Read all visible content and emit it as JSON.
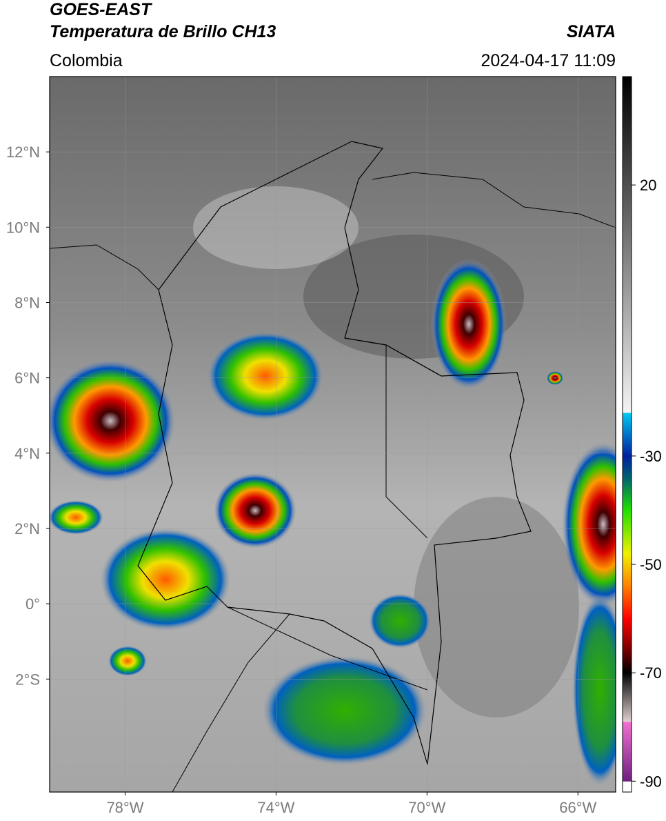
{
  "header": {
    "title": "GOES-EAST",
    "product": "Temperatura de Brillo CH13",
    "source": "SIATA",
    "region": "Colombia",
    "timestamp": "2024-04-17 11:09"
  },
  "map": {
    "lon_lim": [
      -80,
      -65
    ],
    "lat_lim": [
      -5,
      14
    ],
    "lon_ticks": [
      {
        "value": -78,
        "label": "78°W"
      },
      {
        "value": -74,
        "label": "74°W"
      },
      {
        "value": -70,
        "label": "70°W"
      },
      {
        "value": -66,
        "label": "66°W"
      }
    ],
    "lat_ticks": [
      {
        "value": 12,
        "label": "12°N"
      },
      {
        "value": 10,
        "label": "10°N"
      },
      {
        "value": 8,
        "label": "8°N"
      },
      {
        "value": 6,
        "label": "6°N"
      },
      {
        "value": 4,
        "label": "4°N"
      },
      {
        "value": 2,
        "label": "2°N"
      },
      {
        "value": 0,
        "label": "0°"
      },
      {
        "value": -2,
        "label": "2°S"
      }
    ]
  },
  "colorbar": {
    "lim": [
      -92,
      40
    ],
    "ticks": [
      20,
      -30,
      -50,
      -70,
      -90
    ],
    "stops": [
      {
        "value": 40,
        "color": "#000000"
      },
      {
        "value": -22,
        "color": "#f4f4f4"
      },
      {
        "value": -22.1,
        "color": "#00c8f0"
      },
      {
        "value": -30,
        "color": "#0020a0"
      },
      {
        "value": -34,
        "color": "#006070"
      },
      {
        "value": -40,
        "color": "#20e000"
      },
      {
        "value": -48,
        "color": "#f0f000"
      },
      {
        "value": -54,
        "color": "#ff8000"
      },
      {
        "value": -60,
        "color": "#ff0000"
      },
      {
        "value": -66,
        "color": "#700000"
      },
      {
        "value": -70,
        "color": "#000000"
      },
      {
        "value": -79,
        "color": "#e0d0d0"
      },
      {
        "value": -79.1,
        "color": "#f070d0"
      },
      {
        "value": -90,
        "color": "#702080"
      },
      {
        "value": -90.1,
        "color": "#ffffff"
      }
    ]
  }
}
